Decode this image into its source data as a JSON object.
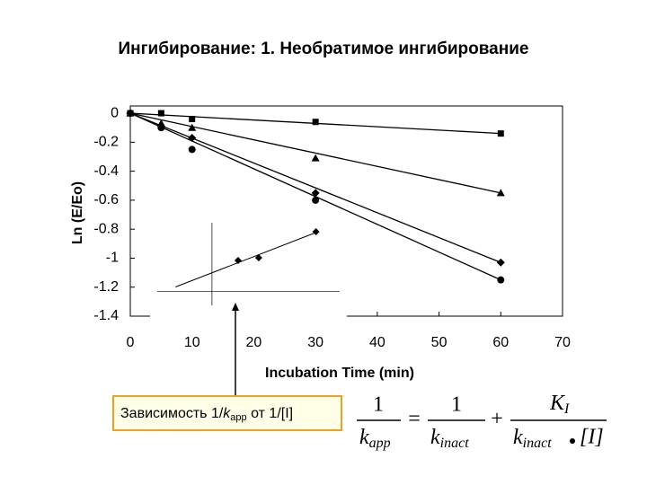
{
  "title": "Ингибирование: 1. Необратимое ингибирование",
  "chart_data": [
    {
      "type": "scatter",
      "x_label": "Incubation Time (min)",
      "y_label": "Ln (E/Eo)",
      "x": [
        0,
        5,
        10,
        30,
        60
      ],
      "series": [
        {
          "marker": "square",
          "color": "#000000",
          "values": [
            0,
            0,
            -0.04,
            -0.06,
            -0.14
          ]
        },
        {
          "marker": "triangle",
          "color": "#000000",
          "values": [
            0,
            -0.07,
            -0.1,
            -0.31,
            -0.55
          ]
        },
        {
          "marker": "diamond",
          "color": "#000000",
          "values": [
            0,
            -0.09,
            -0.17,
            -0.55,
            -1.03
          ]
        },
        {
          "marker": "circle",
          "color": "#000000",
          "values": [
            0,
            -0.1,
            -0.25,
            -0.6,
            -1.15
          ]
        }
      ],
      "xlim": [
        0,
        70
      ],
      "xticks": [
        0,
        10,
        20,
        30,
        40,
        50,
        60,
        70
      ],
      "ylim": [
        -1.4,
        0.05
      ],
      "yticks": [
        0,
        -0.2,
        -0.4,
        -0.6,
        -0.8,
        -1,
        -1.2,
        -1.4
      ],
      "fit_lines": true
    },
    {
      "type": "scatter",
      "x": [
        0.0143,
        0.0256,
        0.057
      ],
      "series": [
        {
          "marker": "diamond",
          "color": "#000000",
          "values": [
            226,
            246,
            435
          ]
        }
      ],
      "xlim": [
        -0.03,
        0.07
      ],
      "ylim": [
        -100,
        500
      ],
      "fit_lines": true
    }
  ],
  "note": {
    "prefix": "Зависимость 1/",
    "k": "k",
    "sub": "app",
    "suffix": " от 1/[I]"
  },
  "formula": {
    "one_a": "1",
    "k_a": "k",
    "sub_a": "app",
    "eq": "=",
    "one_b": "1",
    "k_b": "k",
    "sub_b": "inact",
    "plus": "+",
    "K": "K",
    "sub_K": "I",
    "k_c": "k",
    "sub_c": "inact",
    "conc": "[I]"
  }
}
